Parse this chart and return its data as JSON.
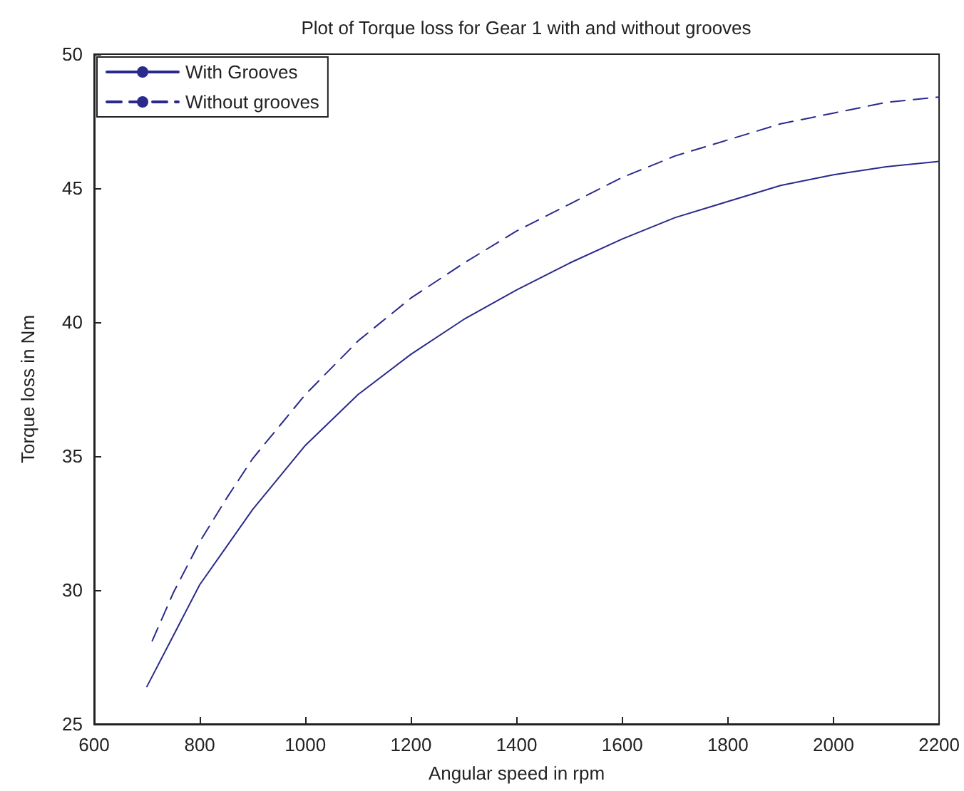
{
  "chart_data": {
    "type": "line",
    "title": "Plot of Torque loss for Gear 1 with and without grooves",
    "xlabel": "Angular speed in rpm",
    "ylabel": "Torque loss in Nm",
    "xlim": [
      600,
      2200
    ],
    "xticks": [
      600,
      800,
      1000,
      1200,
      1400,
      1600,
      1800,
      2000,
      2200
    ],
    "ylim": [
      25,
      50
    ],
    "yticks": [
      25,
      30,
      35,
      40,
      45,
      50
    ],
    "grid": false,
    "legend": "top left",
    "marker": "none",
    "series": [
      {
        "name": "With Grooves",
        "color": "#2a2a8c",
        "line_style": "solid",
        "x": [
          700,
          750,
          800,
          850,
          900,
          1000,
          1100,
          1200,
          1300,
          1400,
          1500,
          1600,
          1700,
          1800,
          1900,
          2000,
          2100,
          2200
        ],
        "values": [
          26.4,
          28.3,
          30.2,
          31.6,
          33.0,
          35.4,
          37.3,
          38.8,
          40.1,
          41.2,
          42.2,
          43.1,
          43.9,
          44.5,
          45.1,
          45.5,
          45.8,
          46.0
        ]
      },
      {
        "name": "Without grooves",
        "color": "#2a2a8c",
        "line_style": "dashed",
        "x": [
          710,
          750,
          800,
          850,
          900,
          1000,
          1100,
          1200,
          1300,
          1400,
          1500,
          1600,
          1700,
          1800,
          1900,
          2000,
          2100,
          2200
        ],
        "values": [
          28.1,
          29.9,
          31.8,
          33.4,
          34.9,
          37.3,
          39.3,
          40.9,
          42.2,
          43.4,
          44.4,
          45.4,
          46.2,
          46.8,
          47.4,
          47.8,
          48.2,
          48.4
        ]
      }
    ]
  }
}
